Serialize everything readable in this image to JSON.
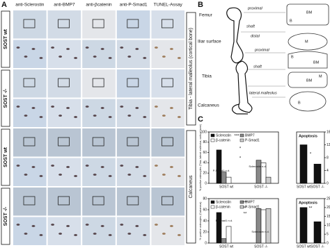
{
  "panel_a": {
    "label": "A",
    "columns": [
      "anti-Sclerostin",
      "anti-BMP7",
      "anti-βcatenin",
      "anti-P-Smad1",
      "TUNEL-Assay"
    ],
    "groups": [
      "SOST wt",
      "SOST -/-",
      "SOST wt",
      "SOST -/-"
    ],
    "regions": [
      "Tibia - lateral malleolus (cortical bone)",
      "Calcaneus"
    ]
  },
  "panel_b": {
    "label": "B",
    "bones": [
      "Femur",
      "Iliar surface",
      "Tibia",
      "Calcaneus"
    ],
    "positions": [
      "proximal",
      "shaft",
      "distal",
      "proximal",
      "shaft",
      "lateral malleolus"
    ],
    "schematic_labels": [
      "B",
      "BM",
      "M",
      "B",
      "BM",
      "M",
      "BM",
      "B"
    ]
  },
  "panel_c": {
    "label": "C",
    "charts": [
      {
        "type": "bar",
        "ylabel": "% positive osteocytes (Tibia, lateral malleolus, cortical bone)",
        "categories": [
          "SOST wt",
          "SOST -/-"
        ],
        "ylim": [
          0,
          100
        ],
        "yticks": [
          0,
          20,
          40,
          60,
          80,
          100
        ],
        "series": [
          {
            "name": "Sclerostin",
            "color": "#111111",
            "values": [
              65,
              null
            ]
          },
          {
            "name": "BMP7",
            "color": "#888888",
            "values": [
              22,
              45
            ]
          },
          {
            "name": "β-catenin",
            "color": "#ffffff",
            "values": [
              12,
              40
            ]
          },
          {
            "name": "P-Smad1",
            "color": "#cccccc",
            "values": [
              null,
              12
            ]
          }
        ],
        "annotations": [
          "***",
          "*",
          "*",
          "P-Smad1 n.d.",
          "Sclerostin n.d."
        ]
      },
      {
        "type": "bar",
        "title": "Apoptosis",
        "categories": [
          "SOST wt",
          "SOST -/-"
        ],
        "ylim": [
          0,
          16
        ],
        "yticks": [
          0,
          4,
          8,
          12,
          16
        ],
        "color": "#111111",
        "values": [
          12,
          6
        ],
        "annotations": [
          "*"
        ]
      },
      {
        "type": "bar",
        "ylabel": "% positive osteocytes (Calcaneus)",
        "categories": [
          "SOST wt",
          "SOST -/-"
        ],
        "ylim": [
          0,
          80
        ],
        "yticks": [
          0,
          20,
          40,
          60,
          80
        ],
        "series": [
          {
            "name": "Sclerostin",
            "color": "#111111",
            "values": [
              55,
              null
            ]
          },
          {
            "name": "BMP7",
            "color": "#888888",
            "values": [
              8,
              62
            ]
          },
          {
            "name": "β-catenin",
            "color": "#ffffff",
            "values": [
              30,
              60
            ]
          },
          {
            "name": "P-Smad1",
            "color": "#cccccc",
            "values": [
              null,
              62
            ]
          }
        ],
        "annotations": [
          "***",
          "**",
          "**",
          "P-Smad1 n.d.",
          "Sclerostin n.d."
        ]
      },
      {
        "type": "bar",
        "title": "Apoptosis",
        "categories": [
          "SOST wt",
          "SOST -/-"
        ],
        "ylim": [
          0,
          25
        ],
        "yticks": [
          0,
          5,
          10,
          15,
          20,
          25
        ],
        "color": "#111111",
        "values": [
          20,
          12
        ],
        "annotations": [
          "**"
        ]
      }
    ]
  }
}
